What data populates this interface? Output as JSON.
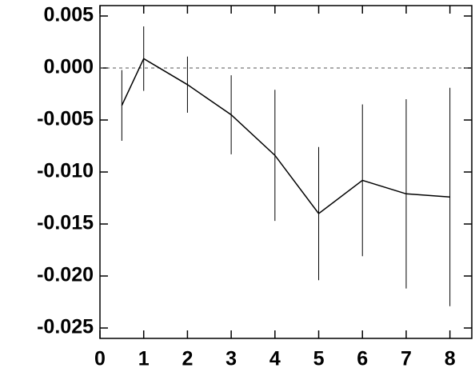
{
  "chart_data": {
    "type": "line",
    "x": [
      0.5,
      1,
      2,
      3,
      4,
      5,
      6,
      7,
      8
    ],
    "series": [
      {
        "color": "#000000",
        "values": [
          -0.0036,
          0.0009,
          -0.0016,
          -0.0045,
          -0.0084,
          -0.014,
          -0.0108,
          -0.0121,
          -0.0124
        ],
        "errors": [
          0.0034,
          0.0031,
          0.0027,
          0.0038,
          0.0063,
          0.0064,
          0.0073,
          0.0091,
          0.0105
        ]
      }
    ],
    "xlim": [
      0,
      8.5
    ],
    "xticks": [
      0,
      1,
      2,
      3,
      4,
      5,
      6,
      7,
      8
    ],
    "ylim": [
      -0.026,
      0.006
    ],
    "yticks": [
      {
        "value": 0.005,
        "label": "0.005"
      },
      {
        "value": 0,
        "label": "0.000"
      },
      {
        "value": -0.005,
        "label": "-0.005"
      },
      {
        "value": -0.01,
        "label": "-0.010"
      },
      {
        "value": -0.015,
        "label": "-0.015"
      },
      {
        "value": -0.02,
        "label": "-0.020"
      },
      {
        "value": -0.025,
        "label": "-0.025"
      }
    ],
    "reference_line": 0
  }
}
